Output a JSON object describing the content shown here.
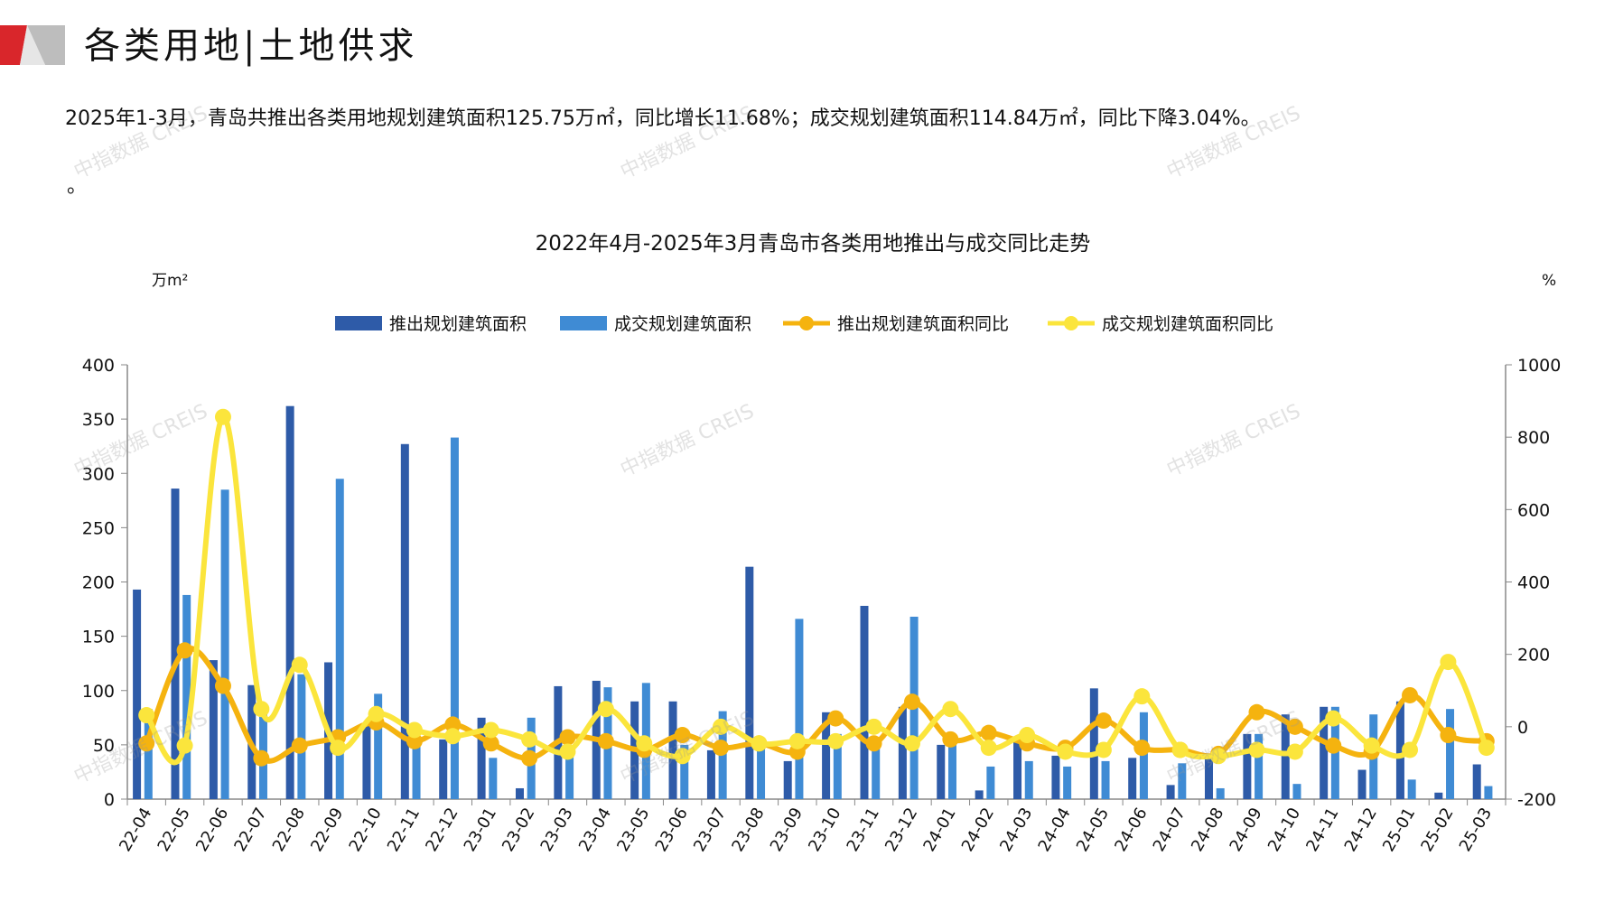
{
  "header": {
    "title": "各类用地|土地供求",
    "summary": "2025年1-3月，青岛共推出各类用地规划建筑面积125.75万㎡，同比增长11.68%；成交规划建筑面积114.84万㎡，同比下降3.04%。",
    "trailing_mark": "。"
  },
  "watermark": "中指数据 CREIS",
  "colors": {
    "launch": "#2E5BA8",
    "deal": "#3F8BD4",
    "launch_yoy": "#F5B30F",
    "deal_yoy": "#FBE53C",
    "brand_red": "#D9262B"
  },
  "chart_data": {
    "type": "bar+line",
    "title": "2022年4月-2025年3月青岛市各类用地推出与成交同比走势",
    "ylabel_left": "万m²",
    "ylabel_right": "%",
    "ylim_left": [
      0,
      400
    ],
    "yticks_left": [
      "0",
      "50",
      "100",
      "150",
      "200",
      "250",
      "300",
      "350",
      "400"
    ],
    "ylim_right": [
      -200,
      1000
    ],
    "yticks_right": [
      "-200",
      "0",
      "200",
      "400",
      "600",
      "800",
      "1000"
    ],
    "legend_position": "top-center",
    "categories": [
      "22-04",
      "22-05",
      "22-06",
      "22-07",
      "22-08",
      "22-09",
      "22-10",
      "22-11",
      "22-12",
      "23-01",
      "23-02",
      "23-03",
      "23-04",
      "23-05",
      "23-06",
      "23-07",
      "23-08",
      "23-09",
      "23-10",
      "23-11",
      "23-12",
      "24-01",
      "24-02",
      "24-03",
      "24-04",
      "24-05",
      "24-06",
      "24-07",
      "24-08",
      "24-09",
      "24-10",
      "24-11",
      "24-12",
      "25-01",
      "25-02",
      "25-03"
    ],
    "series": [
      {
        "name": "推出规划建筑面积",
        "type": "bar",
        "axis": "left",
        "values": [
          193,
          286,
          128,
          105,
          362,
          126,
          70,
          327,
          55,
          75,
          10,
          104,
          109,
          90,
          90,
          45,
          214,
          35,
          80,
          178,
          85,
          50,
          8,
          55,
          40,
          102,
          38,
          13,
          40,
          60,
          78,
          85,
          27,
          90,
          6,
          32
        ]
      },
      {
        "name": "成交规划建筑面积",
        "type": "bar",
        "axis": "left",
        "values": [
          83,
          188,
          285,
          80,
          115,
          295,
          97,
          60,
          333,
          38,
          75,
          45,
          103,
          107,
          50,
          81,
          50,
          166,
          60,
          50,
          168,
          55,
          30,
          35,
          30,
          35,
          80,
          33,
          10,
          60,
          14,
          85,
          78,
          18,
          83,
          12
        ]
      },
      {
        "name": "推出规划建筑面积同比",
        "type": "line",
        "axis": "right",
        "values": [
          -46,
          211,
          113,
          -87,
          -52,
          -29,
          12,
          -40,
          6,
          -46,
          -87,
          -29,
          -40,
          -64,
          -23,
          -58,
          -46,
          -69,
          23,
          -46,
          69,
          -35,
          -17,
          -46,
          -58,
          17,
          -58,
          -64,
          -75,
          40,
          0,
          -52,
          -69,
          87,
          -23,
          -40
        ]
      },
      {
        "name": "成交规划建筑面积同比",
        "type": "line",
        "axis": "right",
        "values": [
          32,
          -52,
          856,
          49,
          171,
          -58,
          35,
          -9,
          -26,
          -9,
          -35,
          -69,
          49,
          -46,
          -81,
          0,
          -46,
          -40,
          -40,
          0,
          -46,
          49,
          -58,
          -23,
          -69,
          -64,
          84,
          -64,
          -81,
          -64,
          -69,
          23,
          -52,
          -64,
          179,
          -58
        ]
      }
    ]
  }
}
